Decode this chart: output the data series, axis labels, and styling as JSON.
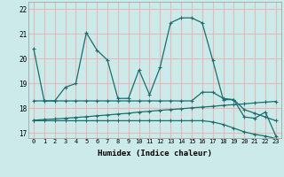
{
  "xlabel": "Humidex (Indice chaleur)",
  "background_color": "#cceaea",
  "grid_color": "#e8b8b8",
  "line_color": "#1a6e6e",
  "xlim": [
    -0.5,
    23.5
  ],
  "ylim": [
    16.8,
    22.3
  ],
  "yticks": [
    17,
    18,
    19,
    20,
    21,
    22
  ],
  "xticks": [
    0,
    1,
    2,
    3,
    4,
    5,
    6,
    7,
    8,
    9,
    10,
    11,
    12,
    13,
    14,
    15,
    16,
    17,
    18,
    19,
    20,
    21,
    22,
    23
  ],
  "series0": [
    20.4,
    18.3,
    18.3,
    18.85,
    19.0,
    21.05,
    20.35,
    19.95,
    18.4,
    18.4,
    19.55,
    18.55,
    19.65,
    21.45,
    21.65,
    21.65,
    21.45,
    19.95,
    18.35,
    18.35,
    17.65,
    17.6,
    17.85,
    16.88
  ],
  "series1": [
    18.3,
    18.3,
    18.3,
    18.3,
    18.3,
    18.3,
    18.3,
    18.3,
    18.3,
    18.3,
    18.3,
    18.3,
    18.3,
    18.3,
    18.3,
    18.3,
    18.65,
    18.65,
    18.4,
    18.35,
    17.95,
    17.8,
    17.65,
    17.5
  ],
  "series2": [
    17.52,
    17.55,
    17.57,
    17.6,
    17.63,
    17.66,
    17.7,
    17.73,
    17.77,
    17.8,
    17.85,
    17.88,
    17.92,
    17.95,
    17.98,
    18.02,
    18.05,
    18.08,
    18.12,
    18.15,
    18.18,
    18.22,
    18.25,
    18.28
  ],
  "series3": [
    17.5,
    17.5,
    17.5,
    17.5,
    17.5,
    17.5,
    17.5,
    17.5,
    17.5,
    17.5,
    17.5,
    17.5,
    17.5,
    17.5,
    17.5,
    17.5,
    17.5,
    17.45,
    17.35,
    17.2,
    17.05,
    16.95,
    16.88,
    16.78
  ]
}
